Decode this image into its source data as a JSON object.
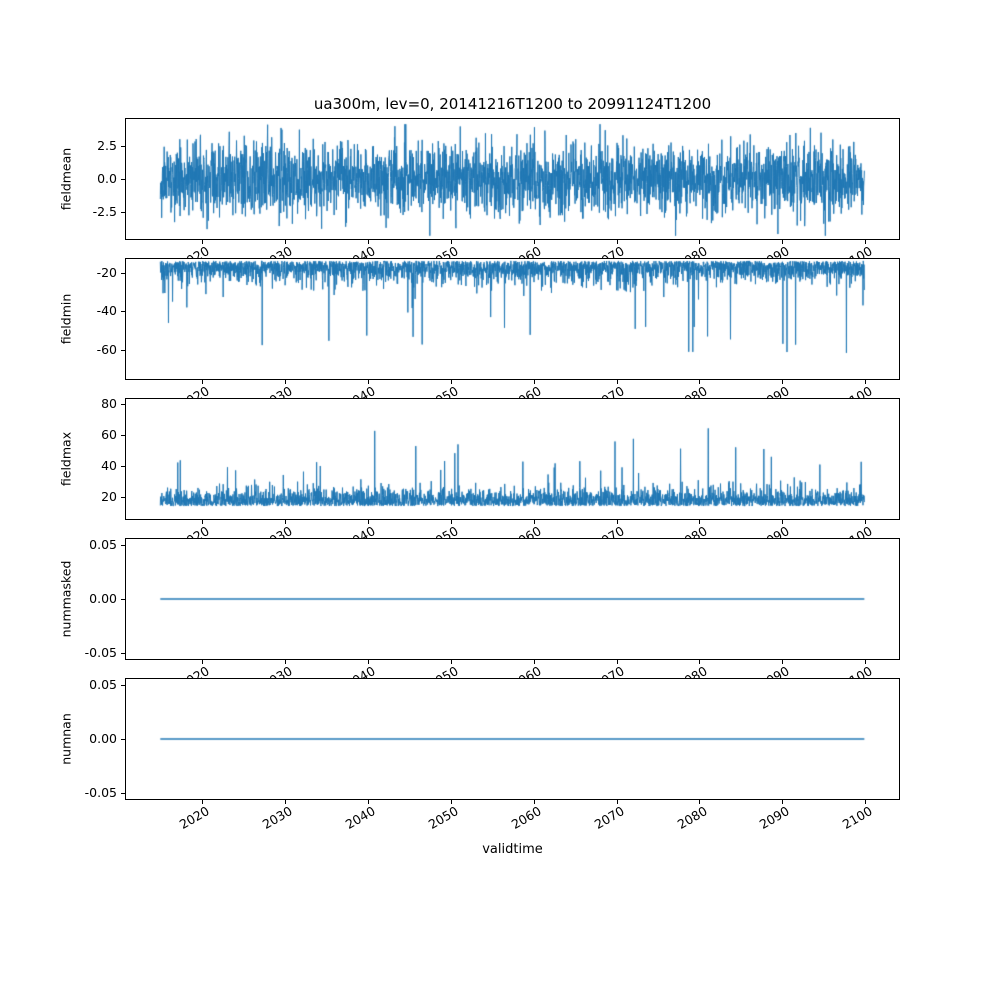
{
  "figure": {
    "title": "ua300m, lev=0, 20141216T1200 to 20991124T1200",
    "background": "#ffffff",
    "line_color": "#1f77b4",
    "x": {
      "label": "validtime",
      "lim": [
        2010.7,
        2104.2
      ],
      "ticks": [
        2020,
        2030,
        2040,
        2050,
        2060,
        2070,
        2080,
        2090,
        2100
      ],
      "tick_labels": [
        "2020",
        "2030",
        "2040",
        "2050",
        "2060",
        "2070",
        "2080",
        "2090",
        "2100"
      ],
      "start": 2014.96,
      "end": 2099.9,
      "n": 3104
    }
  },
  "chart_data": [
    {
      "type": "line",
      "ylabel": "fieldmean",
      "ylim": [
        -4.6,
        4.6
      ],
      "yticks": [
        2.5,
        0.0,
        -2.5
      ],
      "ytick_labels": [
        "2.5",
        "0.0",
        "-2.5"
      ],
      "legend": "none",
      "grid": false,
      "model": {
        "kind": "gaussian",
        "seed": 11,
        "mean": 0,
        "std": 1.35,
        "clip": [
          -4.35,
          4.2
        ]
      }
    },
    {
      "type": "line",
      "ylabel": "fieldmin",
      "ylim": [
        -76,
        -12
      ],
      "yticks": [
        -20,
        -40,
        -60
      ],
      "ytick_labels": [
        "-20",
        "-40",
        "-60"
      ],
      "legend": "none",
      "grid": false,
      "model": {
        "kind": "band-spikes",
        "seed": 22,
        "base": 13,
        "scale": 5.5,
        "spike_prob": 0.015,
        "spike_scale": 45,
        "sign": -1,
        "clip": [
          -74,
          -12.5
        ]
      }
    },
    {
      "type": "line",
      "ylabel": "fieldmax",
      "ylim": [
        5,
        84
      ],
      "yticks": [
        80,
        60,
        40,
        20
      ],
      "ytick_labels": [
        "80",
        "60",
        "40",
        "20"
      ],
      "legend": "none",
      "grid": false,
      "model": {
        "kind": "band-spikes",
        "seed": 33,
        "base": 13.5,
        "scale": 5.5,
        "spike_prob": 0.012,
        "spike_scale": 46,
        "sign": 1,
        "clip": [
          12,
          78
        ]
      }
    },
    {
      "type": "line",
      "ylabel": "nummasked",
      "ylim": [
        -0.0565,
        0.0565
      ],
      "yticks": [
        0.05,
        0.0,
        -0.05
      ],
      "ytick_labels": [
        "0.05",
        "0.00",
        "-0.05"
      ],
      "legend": "none",
      "grid": false,
      "model": {
        "kind": "constant",
        "value": 0.0
      }
    },
    {
      "type": "line",
      "ylabel": "numnan",
      "ylim": [
        -0.0565,
        0.0565
      ],
      "yticks": [
        0.05,
        0.0,
        -0.05
      ],
      "ytick_labels": [
        "0.05",
        "0.00",
        "-0.05"
      ],
      "legend": "none",
      "grid": false,
      "model": {
        "kind": "constant",
        "value": 0.0
      }
    }
  ]
}
